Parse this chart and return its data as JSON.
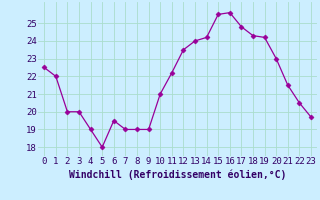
{
  "x": [
    0,
    1,
    2,
    3,
    4,
    5,
    6,
    7,
    8,
    9,
    10,
    11,
    12,
    13,
    14,
    15,
    16,
    17,
    18,
    19,
    20,
    21,
    22,
    23
  ],
  "y": [
    22.5,
    22.0,
    20.0,
    20.0,
    19.0,
    18.0,
    19.5,
    19.0,
    19.0,
    19.0,
    21.0,
    22.2,
    23.5,
    24.0,
    24.2,
    25.5,
    25.6,
    24.8,
    24.3,
    24.2,
    23.0,
    21.5,
    20.5,
    19.7
  ],
  "line_color": "#990099",
  "marker": "D",
  "marker_size": 2.5,
  "bg_color": "#cceeff",
  "grid_color": "#aaddcc",
  "xlabel": "Windchill (Refroidissement éolien,°C)",
  "xlabel_color": "#330066",
  "xlabel_fontsize": 7.0,
  "tick_label_color": "#330066",
  "tick_fontsize": 6.5,
  "ylim": [
    17.5,
    26.2
  ],
  "yticks": [
    18,
    19,
    20,
    21,
    22,
    23,
    24,
    25
  ],
  "xticks": [
    0,
    1,
    2,
    3,
    4,
    5,
    6,
    7,
    8,
    9,
    10,
    11,
    12,
    13,
    14,
    15,
    16,
    17,
    18,
    19,
    20,
    21,
    22,
    23
  ]
}
